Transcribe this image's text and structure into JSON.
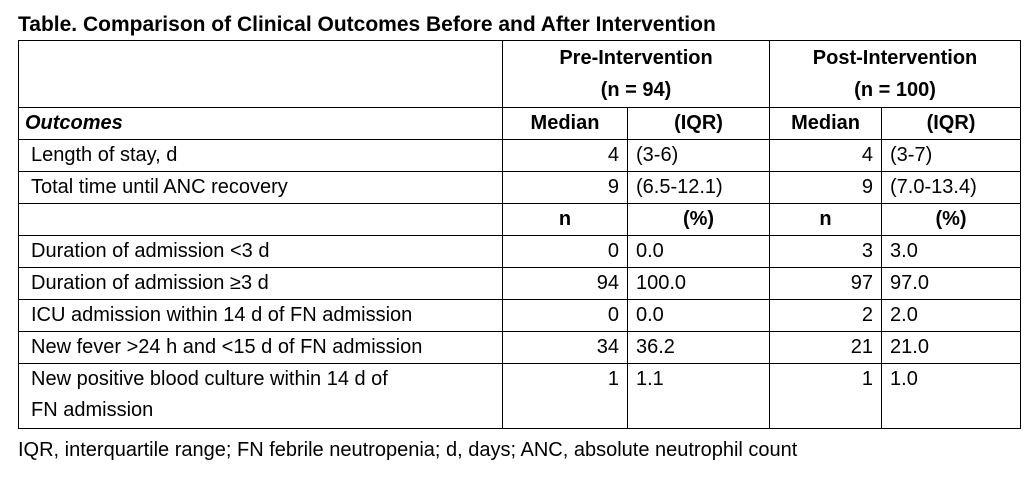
{
  "title": "Table. Comparison of Clinical Outcomes Before and After Intervention",
  "groups": {
    "pre": {
      "line1": "Pre-Intervention",
      "line2": "(n = 94)"
    },
    "post": {
      "line1": "Post-Intervention",
      "line2": "(n = 100)"
    }
  },
  "header1": {
    "outcomes": "Outcomes",
    "pre_a": "Median",
    "pre_b": "(IQR)",
    "post_a": "Median",
    "post_b": "(IQR)"
  },
  "header2": {
    "pre_a": "n",
    "pre_b": "(%)",
    "post_a": "n",
    "post_b": "(%)"
  },
  "rows": [
    {
      "label": "Length of stay, d",
      "pre_a": "4",
      "pre_b": "(3-6)",
      "post_a": "4",
      "post_b": "(3-7)"
    },
    {
      "label": "Total time until ANC recovery",
      "pre_a": "9",
      "pre_b": "(6.5-12.1)",
      "post_a": "9",
      "post_b": "(7.0-13.4)"
    },
    {
      "label": "Duration of admission <3 d",
      "pre_a": "0",
      "pre_b": "0.0",
      "post_a": "3",
      "post_b": "3.0"
    },
    {
      "label": "Duration of admission ≥3 d",
      "pre_a": "94",
      "pre_b": "100.0",
      "post_a": "97",
      "post_b": "97.0"
    },
    {
      "label": "ICU admission within 14 d of FN admission",
      "pre_a": "0",
      "pre_b": "0.0",
      "post_a": "2",
      "post_b": "2.0"
    },
    {
      "label": "New fever >24 h and <15 d of FN admission",
      "pre_a": "34",
      "pre_b": "36.2",
      "post_a": "21",
      "post_b": "21.0"
    },
    {
      "label_line1": "New positive blood culture within 14 d of",
      "label_line2": "FN admission",
      "pre_a": "1",
      "pre_b": "1.1",
      "post_a": "1",
      "post_b": "1.0"
    }
  ],
  "footnote": "IQR, interquartile range; FN febrile neutropenia; d, days; ANC, absolute neutrophil count"
}
